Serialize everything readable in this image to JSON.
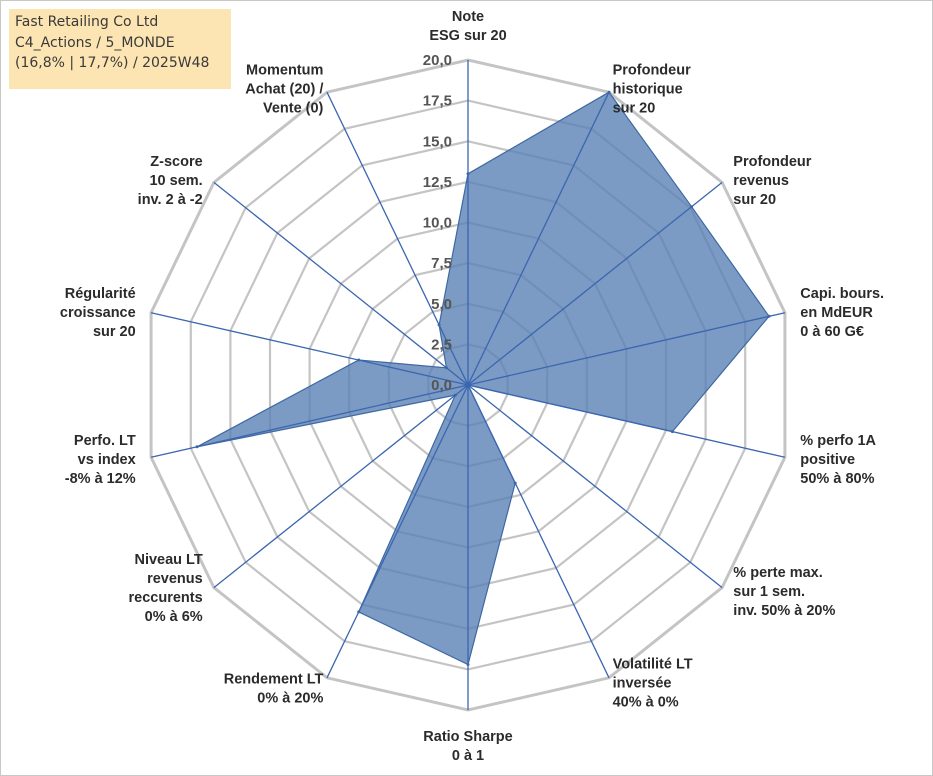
{
  "info": {
    "company": "Fast Retailing Co Ltd",
    "category": "C4_Actions / 5_MONDE",
    "stats": "(16,8% | 17,7%) / 2025W48"
  },
  "chart_data": {
    "type": "radar",
    "title": "",
    "rmin": 0,
    "rmax": 20,
    "tick_values": [
      0,
      2.5,
      5,
      7.5,
      10,
      12.5,
      15,
      17.5,
      20
    ],
    "tick_labels": [
      "0,0",
      "2,5",
      "5,0",
      "7,5",
      "10,0",
      "12,5",
      "15,0",
      "17,5",
      "20,0"
    ],
    "grid": true,
    "colors": {
      "fill": "#5a82b5",
      "stroke": "#3d68a3",
      "spoke": "#3b66b0",
      "grid": "#c4c4c4"
    },
    "categories": [
      {
        "label": [
          "Note",
          "ESG sur 20"
        ]
      },
      {
        "label": [
          "Profondeur",
          "historique",
          "sur 20"
        ]
      },
      {
        "label": [
          "Profondeur",
          "revenus",
          "sur 20"
        ]
      },
      {
        "label": [
          "Capi. bours.",
          "en MdEUR",
          "0 à 60 G€"
        ]
      },
      {
        "label": [
          "% perfo 1A",
          "positive",
          "50% à 80%"
        ]
      },
      {
        "label": [
          "% perte max.",
          "sur 1 sem.",
          "inv. 50% à 20%"
        ]
      },
      {
        "label": [
          "Volatilité LT",
          "inversée",
          "40% à 0%"
        ]
      },
      {
        "label": [
          "Ratio Sharpe",
          "0 à 1"
        ]
      },
      {
        "label": [
          "Rendement LT",
          "0% à 20%"
        ]
      },
      {
        "label": [
          "Niveau LT",
          "revenus",
          "reccurents",
          "0% à 6%"
        ]
      },
      {
        "label": [
          "Perfo. LT",
          "vs index",
          "-8% à 12%"
        ]
      },
      {
        "label": [
          "Régularité",
          "croissance",
          "sur 20"
        ]
      },
      {
        "label": [
          "Z-score",
          "10 sem.",
          "inv. 2 à -2"
        ]
      },
      {
        "label": [
          "Momentum",
          "Achat (20) /",
          "Vente (0)"
        ]
      }
    ],
    "series": [
      {
        "name": "Fast Retailing Co Ltd",
        "values": [
          13.0,
          20.0,
          17.6,
          19.0,
          12.9,
          0.0,
          6.7,
          17.2,
          15.5,
          1.0,
          17.1,
          6.9,
          1.7,
          4.1
        ]
      }
    ]
  }
}
